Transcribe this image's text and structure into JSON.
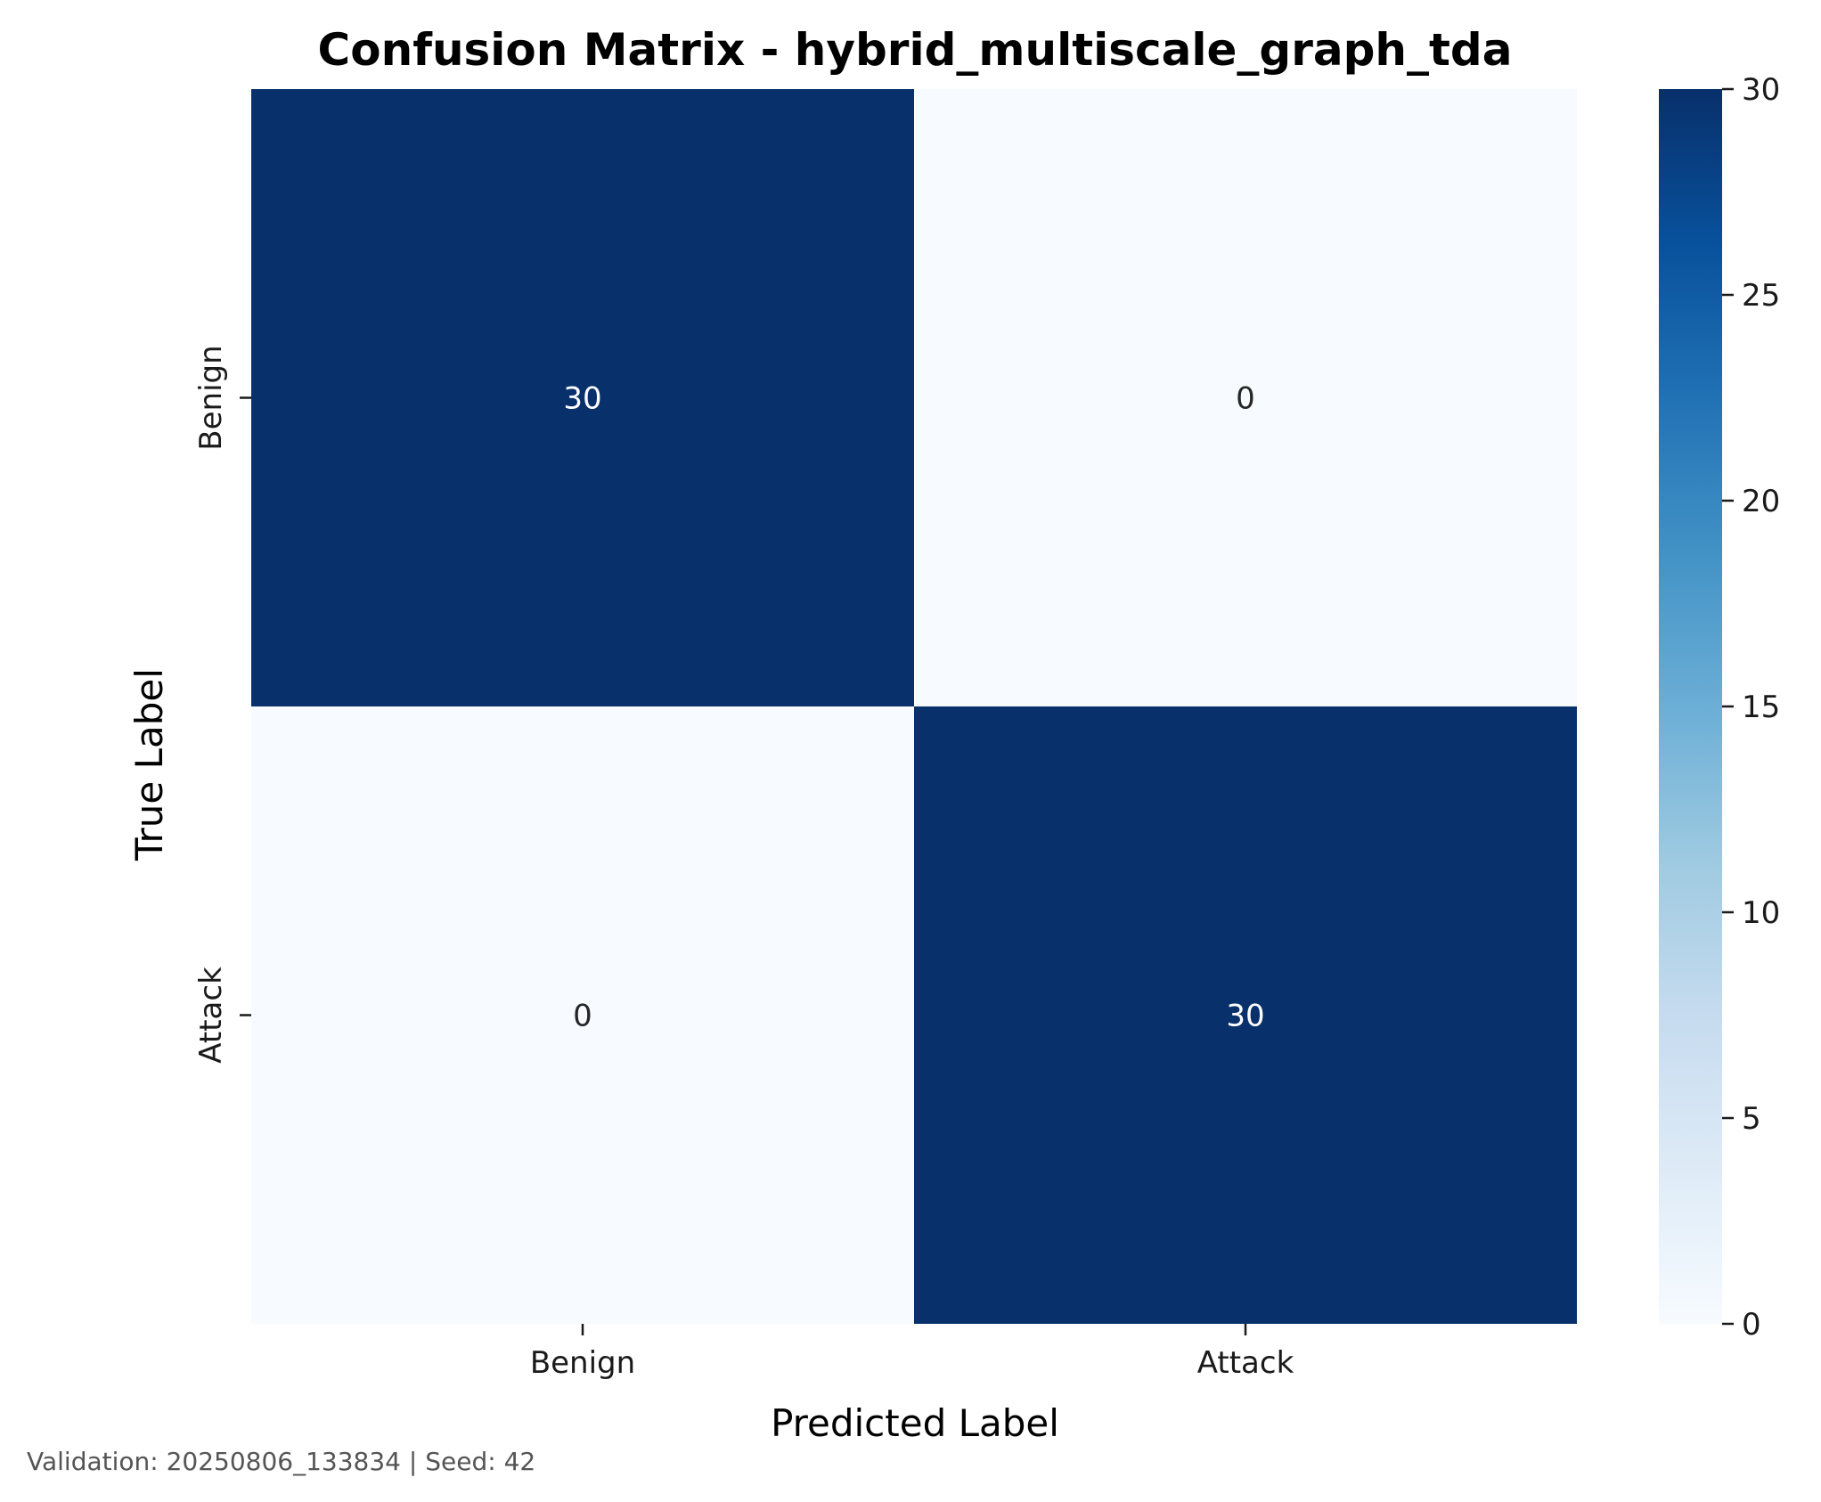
{
  "chart_data": {
    "type": "heatmap",
    "title": "Confusion Matrix - hybrid_multiscale_graph_tda",
    "xlabel": "Predicted Label",
    "ylabel": "True Label",
    "x_categories": [
      "Benign",
      "Attack"
    ],
    "y_categories": [
      "Benign",
      "Attack"
    ],
    "values": [
      [
        30,
        0
      ],
      [
        0,
        30
      ]
    ],
    "colorbar": {
      "colormap": "Blues",
      "range": [
        0,
        30
      ],
      "ticks": [
        0,
        5,
        10,
        15,
        20,
        25,
        30
      ],
      "tick_labels": [
        "0",
        "5",
        "10",
        "15",
        "20",
        "25",
        "30"
      ]
    },
    "grid": false
  },
  "footer": {
    "text": "Validation: 20250806_133834 | Seed: 42"
  }
}
